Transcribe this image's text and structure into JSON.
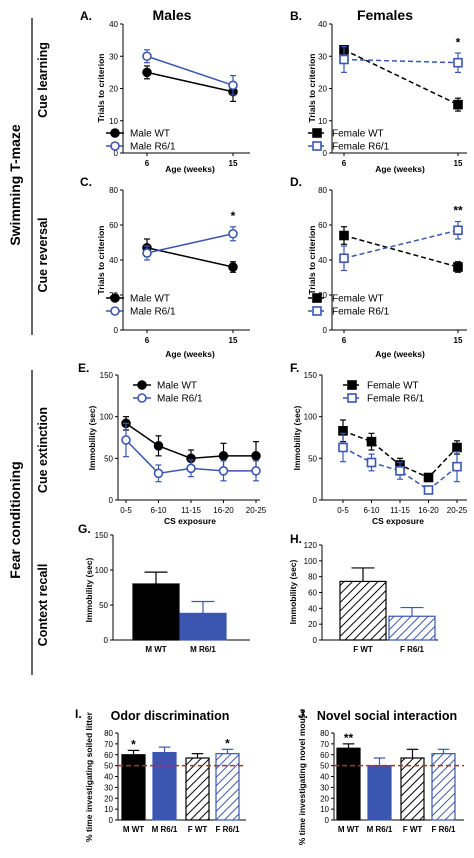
{
  "labels": {
    "col_males": "Males",
    "col_females": "Females",
    "section_swim": "Swimming T-maze",
    "section_fear": "Fear conditioning",
    "row_cue_learning": "Cue learning",
    "row_cue_reversal": "Cue reversal",
    "row_cue_extinction": "Cue extinction",
    "row_context_recall": "Context recall"
  },
  "colors": {
    "black": "#000000",
    "blue": "#3a56b0",
    "ref_line": "#c0282f"
  },
  "chart_data": [
    {
      "id": "A",
      "panel_letter": "A.",
      "type": "line",
      "x": [
        "6",
        "15"
      ],
      "xlabel": "Age  (weeks)",
      "ylabel": "Trials to criterion",
      "ylim": [
        0,
        40
      ],
      "yticks": [
        0,
        10,
        20,
        30,
        40
      ],
      "grid": false,
      "legend": "bottom-left",
      "series": [
        {
          "name": "Male WT",
          "values": [
            25,
            19
          ],
          "errors": [
            2,
            3
          ],
          "style": "black-solid"
        },
        {
          "name": "Male R6/1",
          "values": [
            30,
            21
          ],
          "errors": [
            2,
            3
          ],
          "style": "blue-solid"
        }
      ],
      "annotations": []
    },
    {
      "id": "B",
      "panel_letter": "B.",
      "type": "line",
      "x": [
        "6",
        "15"
      ],
      "xlabel": "Age  (weeks)",
      "ylabel": "Trials to criterion",
      "ylim": [
        0,
        40
      ],
      "yticks": [
        0,
        10,
        20,
        30,
        40
      ],
      "grid": false,
      "legend": "bottom-left",
      "series": [
        {
          "name": "Female WT",
          "values": [
            32,
            15
          ],
          "errors": [
            1,
            2
          ],
          "style": "black-dashed"
        },
        {
          "name": "Female R6/1",
          "values": [
            29,
            28
          ],
          "errors": [
            4,
            3
          ],
          "style": "blue-dashed"
        }
      ],
      "annotations": [
        {
          "text": "*",
          "x": "15",
          "y": 33
        }
      ]
    },
    {
      "id": "C",
      "panel_letter": "C.",
      "type": "line",
      "x": [
        "6",
        "15"
      ],
      "xlabel": "Age  (weeks)",
      "ylabel": "Trials to criterion",
      "ylim": [
        0,
        80
      ],
      "yticks": [
        0,
        20,
        40,
        60,
        80
      ],
      "grid": false,
      "legend": "bottom-left",
      "series": [
        {
          "name": "Male WT",
          "values": [
            47,
            36
          ],
          "errors": [
            5,
            3
          ],
          "style": "black-solid"
        },
        {
          "name": "Male R6/1",
          "values": [
            44,
            55
          ],
          "errors": [
            4,
            4
          ],
          "style": "blue-solid"
        }
      ],
      "annotations": [
        {
          "text": "*",
          "x": "15",
          "y": 63
        }
      ]
    },
    {
      "id": "D",
      "panel_letter": "D.",
      "type": "line",
      "x": [
        "6",
        "15"
      ],
      "xlabel": "Age  (weeks)",
      "ylabel": "Trials to criterion",
      "ylim": [
        0,
        80
      ],
      "yticks": [
        0,
        20,
        40,
        60,
        80
      ],
      "grid": false,
      "legend": "bottom-left",
      "series": [
        {
          "name": "Female WT",
          "values": [
            54,
            36
          ],
          "errors": [
            5,
            3
          ],
          "style": "black-dashed"
        },
        {
          "name": "Female R6/1",
          "values": [
            41,
            57
          ],
          "errors": [
            7,
            5
          ],
          "style": "blue-dashed"
        }
      ],
      "annotations": [
        {
          "text": "**",
          "x": "15",
          "y": 66
        }
      ]
    },
    {
      "id": "E",
      "panel_letter": "E.",
      "type": "line",
      "x": [
        "0-5",
        "6-10",
        "11-15",
        "16-20",
        "20-25"
      ],
      "xlabel": "CS exposure",
      "ylabel": "Immobility (sec)",
      "ylim": [
        0,
        150
      ],
      "yticks": [
        0,
        50,
        100,
        150
      ],
      "grid": false,
      "legend": "top-left",
      "series": [
        {
          "name": "Male WT",
          "values": [
            92,
            65,
            50,
            53,
            53
          ],
          "errors": [
            8,
            12,
            10,
            15,
            17
          ],
          "style": "black-solid"
        },
        {
          "name": "Male R6/1",
          "values": [
            72,
            32,
            38,
            35,
            35
          ],
          "errors": [
            20,
            10,
            10,
            12,
            12
          ],
          "style": "blue-solid"
        }
      ],
      "annotations": []
    },
    {
      "id": "F",
      "panel_letter": "F.",
      "type": "line",
      "x": [
        "0-5",
        "6-10",
        "11-15",
        "16-20",
        "20-25"
      ],
      "xlabel": "CS exposure",
      "ylabel": "Immobility (sec)",
      "ylim": [
        0,
        150
      ],
      "yticks": [
        0,
        50,
        100,
        150
      ],
      "grid": false,
      "legend": "top-left",
      "series": [
        {
          "name": "Female WT",
          "values": [
            83,
            70,
            42,
            27,
            63
          ],
          "errors": [
            13,
            10,
            8,
            4,
            8
          ],
          "style": "black-dashed"
        },
        {
          "name": "Female R6/1",
          "values": [
            63,
            45,
            35,
            12,
            40
          ],
          "errors": [
            17,
            10,
            10,
            4,
            18
          ],
          "style": "blue-dashed"
        }
      ],
      "annotations": []
    },
    {
      "id": "G",
      "panel_letter": "G.",
      "type": "bar",
      "categories": [
        "M WT",
        "M R6/1"
      ],
      "values": [
        80,
        38
      ],
      "errors": [
        17,
        17
      ],
      "bar_styles": [
        "black",
        "blue"
      ],
      "ylabel": "Immobility (sec)",
      "ylim": [
        0,
        150
      ],
      "yticks": [
        0,
        50,
        100,
        150
      ],
      "grid": false,
      "reference": null,
      "annotations": []
    },
    {
      "id": "H",
      "panel_letter": "H.",
      "type": "bar",
      "categories": [
        "F WT",
        "F R6/1"
      ],
      "values": [
        74,
        30
      ],
      "errors": [
        17,
        11
      ],
      "bar_styles": [
        "black-hatch",
        "blue-hatch"
      ],
      "ylabel": "Immobility (sec)",
      "ylim": [
        0,
        120
      ],
      "yticks": [
        0,
        20,
        40,
        60,
        80,
        100,
        120
      ],
      "grid": false,
      "reference": null,
      "annotations": []
    },
    {
      "id": "I",
      "panel_letter": "I.",
      "title": "Odor discrimination",
      "type": "bar",
      "categories": [
        "M WT",
        "M R6/1",
        "F WT",
        "F R6/1"
      ],
      "values": [
        60,
        62,
        57,
        61
      ],
      "errors": [
        4,
        5,
        4,
        4
      ],
      "bar_styles": [
        "black",
        "blue",
        "black-hatch",
        "blue-hatch"
      ],
      "ylabel": "% time investigating soiled litter",
      "ylim": [
        0,
        80
      ],
      "yticks": [
        0,
        10,
        20,
        30,
        40,
        50,
        60,
        70,
        80
      ],
      "grid": false,
      "reference": 50,
      "annotations": [
        {
          "text": "*",
          "category": "M WT"
        },
        {
          "text": "*",
          "category": "F R6/1"
        }
      ]
    },
    {
      "id": "J",
      "panel_letter": "J.",
      "title": "Novel social interaction",
      "type": "bar",
      "categories": [
        "M WT",
        "M R6/1",
        "F WT",
        "F R6/1"
      ],
      "values": [
        66,
        50,
        57,
        61
      ],
      "errors": [
        4,
        7,
        8,
        4
      ],
      "bar_styles": [
        "black",
        "blue",
        "black-hatch",
        "blue-hatch"
      ],
      "ylabel": "% time investigating novel mouse",
      "ylim": [
        0,
        80
      ],
      "yticks": [
        0,
        10,
        20,
        30,
        40,
        50,
        60,
        70,
        80
      ],
      "grid": false,
      "reference": 50,
      "annotations": [
        {
          "text": "**",
          "category": "M WT"
        }
      ]
    }
  ]
}
